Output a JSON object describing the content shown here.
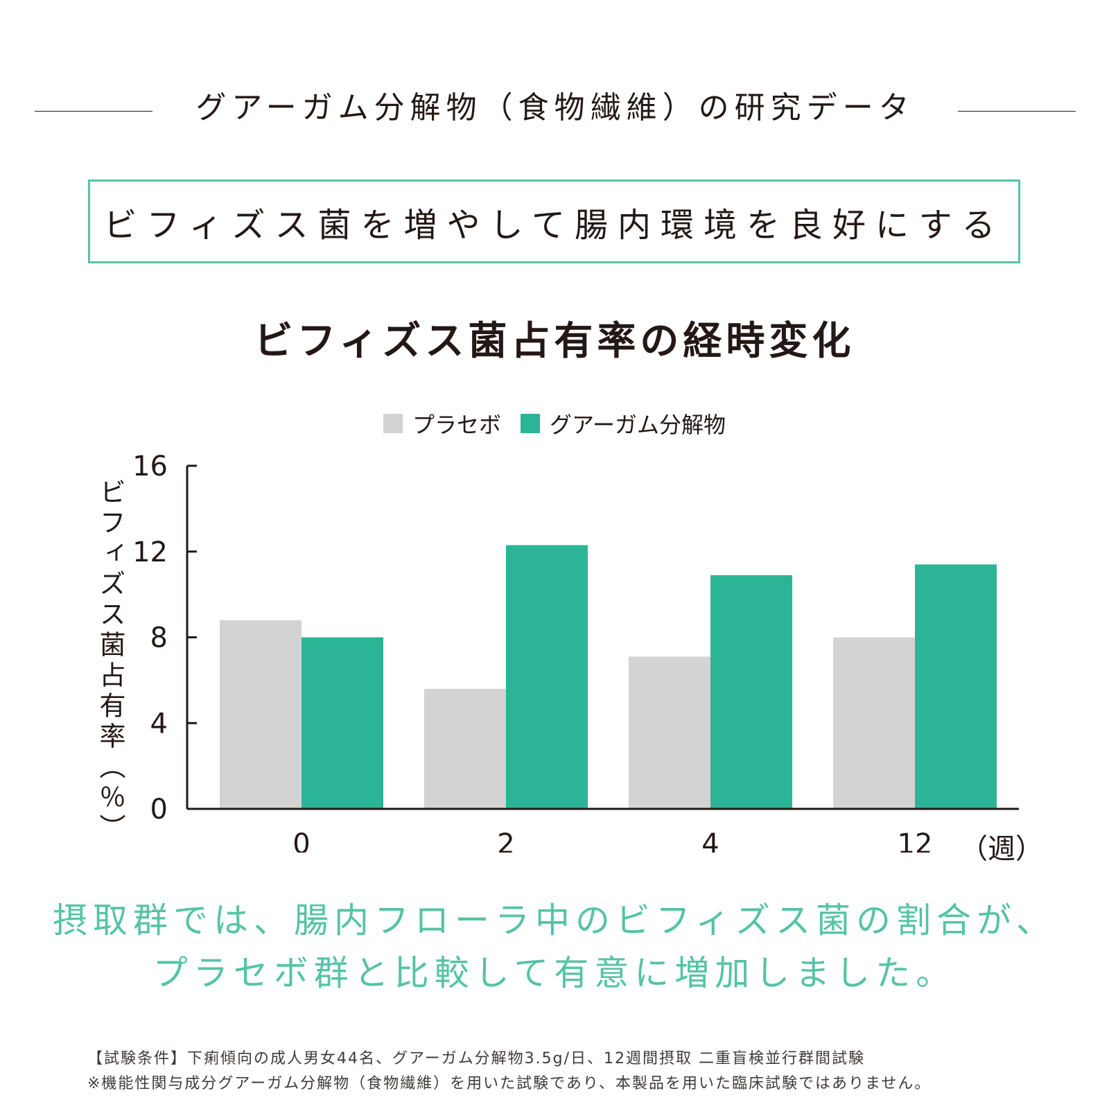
{
  "header": {
    "section_title": "グアーガム分解物（食物繊維）の研究データ",
    "headline": "ビフィズス菌を増やして腸内環境を良好にする"
  },
  "colors": {
    "placebo": "#d3d3d3",
    "treatment": "#2bb596",
    "accent": "#55c3a6",
    "text": "#231815"
  },
  "chart_data": {
    "type": "bar",
    "title": "ビフィズス菌占有率の経時変化",
    "categories": [
      "0",
      "2",
      "4",
      "12"
    ],
    "series": [
      {
        "name": "プラセボ",
        "values": [
          8.8,
          5.6,
          7.1,
          8.0
        ],
        "color": "#d3d3d3"
      },
      {
        "name": "グアーガム分解物",
        "values": [
          8.0,
          12.3,
          10.9,
          11.4
        ],
        "color": "#2bb596"
      }
    ],
    "xlabel": "（週）",
    "ylabel": "ビフィズス菌占有率（％）",
    "ylim": [
      0,
      16
    ],
    "yticks": [
      "0",
      "4",
      "8",
      "12",
      "16"
    ],
    "legend_position": "top-center",
    "grid": false
  },
  "conclusion": {
    "line1": "摂取群では、腸内フローラ中のビフィズス菌の割合が、",
    "line2": "プラセボ群と比較して有意に増加しました。"
  },
  "footnotes": {
    "conditions": "【試験条件】下痢傾向の成人男女44名、グアーガム分解物3.5g/日、12週間摂取 二重盲検並行群間試験",
    "disclaimer": "※機能性関与成分グアーガム分解物（食物繊維）を用いた試験であり、本製品を用いた臨床試験ではありません。"
  }
}
